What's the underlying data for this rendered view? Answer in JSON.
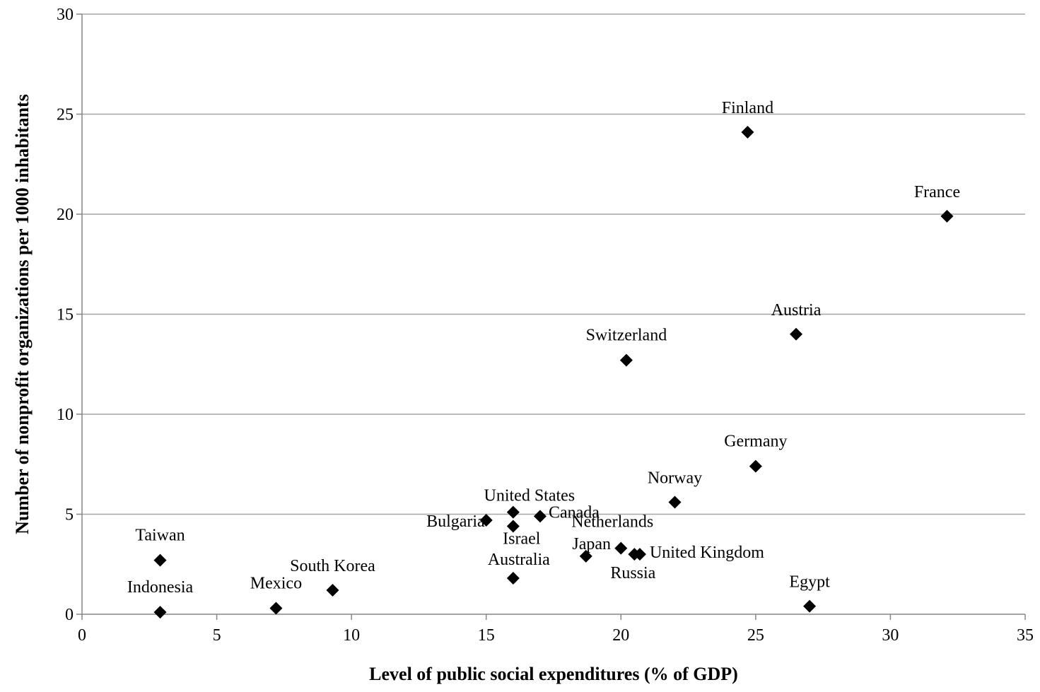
{
  "chart_data": {
    "type": "scatter",
    "title": "",
    "xlabel": "Level of public social expenditures (% of GDP)",
    "ylabel": "Number of nonprofit organizations per 1000 inhabitants",
    "xlim": [
      0,
      35
    ],
    "ylim": [
      0,
      30
    ],
    "xticks": [
      0,
      5,
      10,
      15,
      20,
      25,
      30,
      35
    ],
    "yticks": [
      0,
      5,
      10,
      15,
      20,
      25,
      30
    ],
    "grid": "horizontal",
    "marker": "diamond",
    "colors": {
      "marker": "#000000",
      "grid": "#a6a6a6",
      "axis": "#868686"
    },
    "points": [
      {
        "label": "Finland",
        "x": 24.7,
        "y": 24.1
      },
      {
        "label": "France",
        "x": 32.1,
        "y": 19.9
      },
      {
        "label": "Austria",
        "x": 26.5,
        "y": 14.0
      },
      {
        "label": "Switzerland",
        "x": 20.2,
        "y": 12.7
      },
      {
        "label": "Germany",
        "x": 25.0,
        "y": 7.4
      },
      {
        "label": "Norway",
        "x": 22.0,
        "y": 5.6
      },
      {
        "label": "United States",
        "x": 16.0,
        "y": 5.1
      },
      {
        "label": "Canada",
        "x": 17.0,
        "y": 4.9
      },
      {
        "label": "Bulgaria",
        "x": 15.0,
        "y": 4.7
      },
      {
        "label": "Israel",
        "x": 16.0,
        "y": 4.4
      },
      {
        "label": "Netherlands",
        "x": 20.0,
        "y": 3.3
      },
      {
        "label": "United Kingdom",
        "x": 20.7,
        "y": 3.0
      },
      {
        "label": "Russia",
        "x": 20.5,
        "y": 3.0
      },
      {
        "label": "Japan",
        "x": 18.7,
        "y": 2.9
      },
      {
        "label": "Australia",
        "x": 16.0,
        "y": 1.8
      },
      {
        "label": "Taiwan",
        "x": 2.9,
        "y": 2.7
      },
      {
        "label": "South Korea",
        "x": 9.3,
        "y": 1.2
      },
      {
        "label": "Mexico",
        "x": 7.2,
        "y": 0.3
      },
      {
        "label": "Indonesia",
        "x": 2.9,
        "y": 0.1
      },
      {
        "label": "Egypt",
        "x": 27.0,
        "y": 0.4
      }
    ]
  }
}
